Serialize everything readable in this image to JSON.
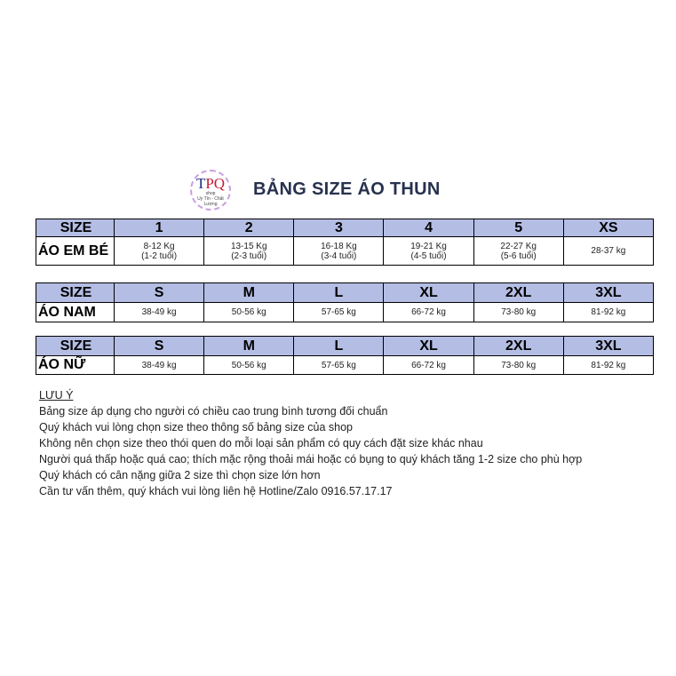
{
  "logo": {
    "text": "TPQ",
    "sub1": "shop",
    "sub2": "Uy Tín - Chất Lượng"
  },
  "title": "BẢNG SIZE ÁO THUN",
  "tables": [
    {
      "header": [
        "SIZE",
        "1",
        "2",
        "3",
        "4",
        "5",
        "XS"
      ],
      "row_label": "ÁO EM BÉ",
      "cells": [
        [
          "8-12 Kg",
          "(1-2 tuổi)"
        ],
        [
          "13-15 Kg",
          "(2-3 tuổi)"
        ],
        [
          "16-18 Kg",
          "(3-4 tuổi)"
        ],
        [
          "19-21 Kg",
          "(4-5 tuổi)"
        ],
        [
          "22-27 Kg",
          "(5-6 tuổi)"
        ],
        [
          "28-37 kg",
          ""
        ]
      ]
    },
    {
      "header": [
        "SIZE",
        "S",
        "M",
        "L",
        "XL",
        "2XL",
        "3XL"
      ],
      "row_label": "ÁO NAM",
      "cells": [
        [
          "38-49 kg"
        ],
        [
          "50-56 kg"
        ],
        [
          "57-65 kg"
        ],
        [
          "66-72 kg"
        ],
        [
          "73-80 kg"
        ],
        [
          "81-92 kg"
        ]
      ]
    },
    {
      "header": [
        "SIZE",
        "S",
        "M",
        "L",
        "XL",
        "2XL",
        "3XL"
      ],
      "row_label": "ÁO NỮ",
      "cells": [
        [
          "38-49 kg"
        ],
        [
          "50-56 kg"
        ],
        [
          "57-65 kg"
        ],
        [
          "66-72 kg"
        ],
        [
          "73-80 kg"
        ],
        [
          "81-92 kg"
        ]
      ]
    }
  ],
  "notes": {
    "heading": "LƯU Ý",
    "lines": [
      "Bảng size áp dụng cho người có chiều cao trung bình tương đối chuẩn",
      "Quý khách vui lòng chọn size theo thông số bảng size của shop",
      "Không nên chọn size theo thói quen do mỗi loại sản phẩm có quy cách đặt size khác nhau",
      "Người quá thấp hoặc quá cao; thích mặc rộng thoải mái hoặc có bụng to quý khách tăng 1-2 size cho phù hợp",
      "Quý khách có cân nặng giữa 2 size thì chọn size lớn hơn",
      "Cần tư vấn thêm, quý khách vui lòng liên hệ Hotline/Zalo 0916.57.17.17"
    ]
  }
}
